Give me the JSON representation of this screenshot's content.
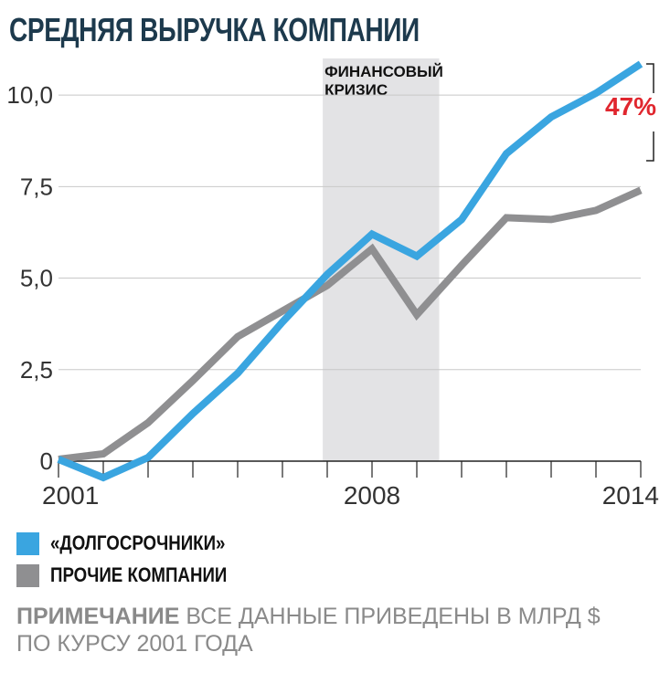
{
  "title": "СРЕДНЯЯ ВЫРУЧКА КОМПАНИИ",
  "chart_data": {
    "type": "line",
    "x": [
      2001,
      2002,
      2003,
      2004,
      2005,
      2006,
      2007,
      2008,
      2009,
      2010,
      2011,
      2012,
      2013,
      2014
    ],
    "series": [
      {
        "name": "«ДОЛГОСРОЧНИКИ»",
        "color": "#3aa5e0",
        "values": [
          0.05,
          -0.45,
          0.1,
          1.3,
          2.4,
          3.8,
          5.1,
          6.2,
          5.6,
          6.6,
          8.4,
          9.4,
          10.05,
          10.85
        ]
      },
      {
        "name": "ПРОЧИЕ КОМПАНИИ",
        "color": "#8f8f91",
        "values": [
          0.05,
          0.2,
          1.05,
          2.2,
          3.4,
          4.1,
          4.8,
          5.8,
          4.0,
          5.35,
          6.65,
          6.6,
          6.85,
          7.4
        ]
      }
    ],
    "ylim": [
      0,
      11
    ],
    "xlim": [
      2001,
      2014
    ],
    "yticks": [
      0,
      2.5,
      5.0,
      7.5,
      10.0
    ],
    "ytick_labels": [
      "0",
      "2,5",
      "5,0",
      "7,5",
      "10,0"
    ],
    "xtick_labels": [
      "2001",
      "2008",
      "2014"
    ],
    "grid": true,
    "shaded_region": {
      "from": 2006.9,
      "to": 2009.5,
      "label_line1": "ФИНАНСОВЫЙ",
      "label_line2": "КРИЗИС",
      "color": "#e3e3e5"
    },
    "annotation": {
      "text": "47%",
      "color": "#e0262e"
    },
    "xlabel": "",
    "ylabel": ""
  },
  "legend": [
    {
      "label": "«ДОЛГОСРОЧНИКИ»",
      "color": "#3aa5e0"
    },
    {
      "label": "ПРОЧИЕ КОМПАНИИ",
      "color": "#8f8f91"
    }
  ],
  "note": {
    "prefix": "ПРИМЕЧАНИЕ",
    "line1": "ВСЕ ДАННЫЕ ПРИВЕДЕНЫ В МЛРД $",
    "line2": "ПО КУРСУ 2001 ГОДА"
  }
}
